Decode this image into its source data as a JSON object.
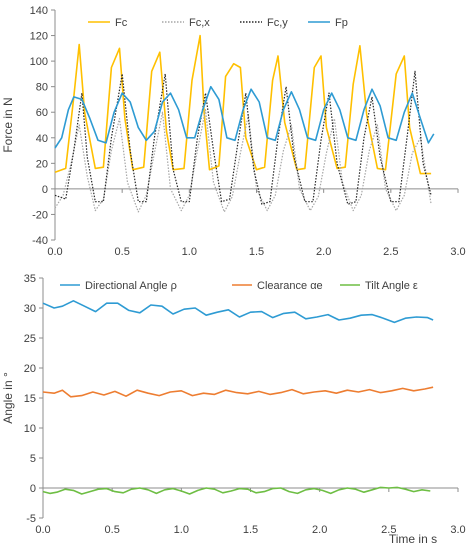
{
  "chart_data": [
    {
      "type": "line",
      "title": "",
      "xlabel": "",
      "ylabel": "Force in N",
      "xlim": [
        0,
        3.0
      ],
      "ylim": [
        -40,
        140
      ],
      "xticks": [
        "0.0",
        "0.5",
        "1.0",
        "1.5",
        "2.0",
        "2.5",
        "3.0"
      ],
      "yticks": [
        "-40",
        "-20",
        "0",
        "20",
        "40",
        "60",
        "80",
        "100",
        "120",
        "140"
      ],
      "grid": false,
      "legend_position": "top",
      "cycle_period_s": 0.32,
      "peak_times_s": [
        0.18,
        0.5,
        0.81,
        1.1,
        1.38,
        1.66,
        1.98,
        2.27,
        2.6
      ],
      "series": [
        {
          "name": "Fc",
          "color": "#FFC000",
          "style": "solid",
          "x": [
            0.0,
            0.08,
            0.14,
            0.18,
            0.22,
            0.3,
            0.36,
            0.42,
            0.48,
            0.52,
            0.58,
            0.66,
            0.72,
            0.78,
            0.83,
            0.88,
            0.96,
            1.02,
            1.08,
            1.11,
            1.15,
            1.22,
            1.27,
            1.33,
            1.38,
            1.42,
            1.5,
            1.56,
            1.62,
            1.66,
            1.71,
            1.8,
            1.86,
            1.93,
            1.98,
            2.02,
            2.1,
            2.16,
            2.22,
            2.27,
            2.32,
            2.4,
            2.46,
            2.54,
            2.6,
            2.64,
            2.72,
            2.8
          ],
          "y": [
            13,
            16,
            72,
            113,
            60,
            16,
            17,
            95,
            110,
            55,
            15,
            17,
            92,
            107,
            45,
            15,
            16,
            85,
            120,
            60,
            15,
            18,
            88,
            98,
            95,
            40,
            15,
            17,
            85,
            104,
            52,
            15,
            16,
            95,
            104,
            48,
            16,
            17,
            82,
            112,
            58,
            16,
            15,
            90,
            104,
            48,
            12,
            12
          ]
        },
        {
          "name": "Fc,x",
          "color": "#A6A6A6",
          "style": "dotted",
          "x": [
            0.0,
            0.06,
            0.12,
            0.18,
            0.24,
            0.3,
            0.36,
            0.42,
            0.48,
            0.54,
            0.62,
            0.68,
            0.74,
            0.8,
            0.86,
            0.94,
            1.0,
            1.06,
            1.12,
            1.18,
            1.26,
            1.32,
            1.38,
            1.44,
            1.5,
            1.58,
            1.64,
            1.7,
            1.76,
            1.82,
            1.9,
            1.96,
            2.02,
            2.08,
            2.14,
            2.22,
            2.28,
            2.34,
            2.4,
            2.46,
            2.54,
            2.6,
            2.66,
            2.72,
            2.8
          ],
          "y": [
            -15,
            -5,
            20,
            50,
            10,
            -17,
            -8,
            30,
            55,
            5,
            -18,
            -5,
            28,
            60,
            0,
            -17,
            -5,
            30,
            62,
            5,
            -18,
            -6,
            28,
            58,
            0,
            -17,
            -5,
            30,
            50,
            0,
            -17,
            -6,
            28,
            55,
            5,
            -17,
            -5,
            30,
            50,
            0,
            -17,
            -5,
            28,
            40,
            -12
          ]
        },
        {
          "name": "Fc,y",
          "color": "#262626",
          "style": "dotted",
          "x": [
            0.0,
            0.08,
            0.14,
            0.2,
            0.24,
            0.3,
            0.36,
            0.42,
            0.5,
            0.56,
            0.62,
            0.68,
            0.74,
            0.82,
            0.88,
            0.94,
            1.0,
            1.06,
            1.12,
            1.18,
            1.24,
            1.3,
            1.36,
            1.42,
            1.48,
            1.54,
            1.6,
            1.66,
            1.72,
            1.78,
            1.86,
            1.92,
            1.98,
            2.04,
            2.1,
            2.18,
            2.24,
            2.3,
            2.36,
            2.42,
            2.5,
            2.56,
            2.62,
            2.68,
            2.74,
            2.8
          ],
          "y": [
            -5,
            -8,
            30,
            75,
            25,
            -10,
            -10,
            40,
            90,
            30,
            -10,
            -10,
            40,
            90,
            15,
            -10,
            -10,
            40,
            75,
            30,
            -10,
            -8,
            35,
            75,
            15,
            -12,
            -10,
            40,
            80,
            25,
            -10,
            -10,
            38,
            75,
            20,
            -12,
            -10,
            40,
            72,
            25,
            -10,
            -10,
            40,
            92,
            20,
            -5
          ]
        },
        {
          "name": "Fp",
          "color": "#2E9BD3",
          "style": "solid",
          "x": [
            0.0,
            0.05,
            0.1,
            0.14,
            0.2,
            0.26,
            0.32,
            0.38,
            0.44,
            0.5,
            0.56,
            0.62,
            0.68,
            0.74,
            0.8,
            0.86,
            0.92,
            0.98,
            1.04,
            1.1,
            1.16,
            1.22,
            1.28,
            1.34,
            1.4,
            1.46,
            1.52,
            1.58,
            1.64,
            1.7,
            1.76,
            1.82,
            1.88,
            1.94,
            2.0,
            2.06,
            2.12,
            2.18,
            2.24,
            2.3,
            2.36,
            2.42,
            2.48,
            2.54,
            2.6,
            2.66,
            2.72,
            2.78,
            2.82
          ],
          "y": [
            32,
            40,
            62,
            72,
            70,
            55,
            38,
            36,
            60,
            75,
            68,
            48,
            38,
            45,
            68,
            75,
            62,
            40,
            40,
            62,
            80,
            70,
            40,
            38,
            62,
            78,
            68,
            40,
            38,
            62,
            76,
            62,
            40,
            38,
            62,
            75,
            62,
            40,
            38,
            62,
            78,
            65,
            40,
            38,
            60,
            75,
            55,
            36,
            43
          ]
        }
      ]
    },
    {
      "type": "line",
      "title": "",
      "xlabel": "Time in s",
      "ylabel": "Angle in °",
      "xlim": [
        0,
        3.0
      ],
      "ylim": [
        -5,
        35
      ],
      "xticks": [
        "0.0",
        "0.5",
        "1.0",
        "1.5",
        "2.0",
        "2.5",
        "3.0"
      ],
      "yticks": [
        "-5",
        "0",
        "5",
        "10",
        "15",
        "20",
        "25",
        "30",
        "35"
      ],
      "grid": false,
      "legend_position": "top",
      "series": [
        {
          "name": "Directional Angle ρ",
          "color": "#2E9BD3",
          "x": [
            0.0,
            0.08,
            0.14,
            0.22,
            0.3,
            0.38,
            0.46,
            0.54,
            0.62,
            0.7,
            0.78,
            0.86,
            0.94,
            1.02,
            1.1,
            1.18,
            1.26,
            1.34,
            1.42,
            1.5,
            1.58,
            1.66,
            1.74,
            1.82,
            1.9,
            1.98,
            2.06,
            2.14,
            2.22,
            2.3,
            2.38,
            2.46,
            2.54,
            2.62,
            2.7,
            2.78,
            2.82
          ],
          "y": [
            30.8,
            30.0,
            30.3,
            31.2,
            30.3,
            29.4,
            30.8,
            30.8,
            29.6,
            29.2,
            30.5,
            30.3,
            29.0,
            29.8,
            30.0,
            28.8,
            29.3,
            29.7,
            28.5,
            29.3,
            29.4,
            28.4,
            29.1,
            29.3,
            28.2,
            28.5,
            28.9,
            28.0,
            28.3,
            28.8,
            28.9,
            28.3,
            27.6,
            28.3,
            28.5,
            28.4,
            28.0
          ]
        },
        {
          "name": "Clearance αe",
          "color": "#ED7D31",
          "x": [
            0.0,
            0.08,
            0.14,
            0.2,
            0.28,
            0.36,
            0.44,
            0.52,
            0.6,
            0.68,
            0.76,
            0.84,
            0.92,
            1.0,
            1.08,
            1.16,
            1.24,
            1.32,
            1.4,
            1.48,
            1.56,
            1.64,
            1.72,
            1.8,
            1.88,
            1.96,
            2.04,
            2.12,
            2.2,
            2.28,
            2.36,
            2.44,
            2.52,
            2.6,
            2.68,
            2.76,
            2.82
          ],
          "y": [
            16.0,
            15.8,
            16.3,
            15.2,
            15.4,
            16.0,
            15.5,
            16.1,
            15.3,
            16.3,
            15.8,
            15.4,
            16.0,
            16.2,
            15.4,
            15.8,
            15.6,
            16.3,
            15.9,
            15.7,
            16.1,
            15.6,
            15.9,
            16.4,
            15.7,
            16.0,
            16.2,
            15.8,
            16.3,
            16.0,
            16.4,
            15.9,
            16.2,
            16.6,
            16.2,
            16.5,
            16.8
          ]
        },
        {
          "name": "Tilt Angle ε",
          "color": "#6EBE44",
          "x": [
            0.0,
            0.05,
            0.1,
            0.16,
            0.22,
            0.28,
            0.34,
            0.4,
            0.46,
            0.52,
            0.58,
            0.64,
            0.7,
            0.76,
            0.82,
            0.88,
            0.94,
            1.0,
            1.06,
            1.12,
            1.18,
            1.24,
            1.3,
            1.36,
            1.42,
            1.48,
            1.54,
            1.6,
            1.66,
            1.72,
            1.78,
            1.84,
            1.9,
            1.96,
            2.02,
            2.08,
            2.14,
            2.2,
            2.26,
            2.32,
            2.38,
            2.44,
            2.5,
            2.56,
            2.62,
            2.68,
            2.74,
            2.8
          ],
          "y": [
            -0.6,
            -0.9,
            -0.7,
            -0.2,
            -0.4,
            -1.0,
            -0.6,
            -0.2,
            -0.1,
            -0.6,
            -0.8,
            -0.2,
            0.0,
            -0.3,
            -0.9,
            -0.3,
            -0.1,
            -0.5,
            -1.0,
            -0.4,
            0.0,
            -0.2,
            -0.8,
            -0.5,
            -0.1,
            -0.2,
            -0.8,
            -0.6,
            -0.1,
            0.0,
            -0.6,
            -0.9,
            -0.3,
            -0.1,
            -0.4,
            -0.9,
            -0.3,
            0.0,
            -0.2,
            -0.7,
            -0.3,
            0.1,
            0.0,
            0.1,
            -0.2,
            -0.6,
            -0.3,
            -0.5
          ]
        }
      ]
    }
  ]
}
